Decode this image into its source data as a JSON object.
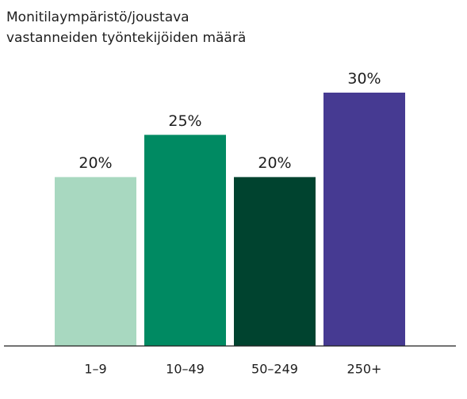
{
  "chart_data": {
    "type": "bar",
    "title": [
      "Monitilaympäristö/joustava",
      "vastanneiden työntekijöiden määrä"
    ],
    "categories": [
      "1–9",
      "10–49",
      "50–249",
      "250+"
    ],
    "values": [
      20,
      25,
      20,
      30
    ],
    "value_labels": [
      "20%",
      "25%",
      "20%",
      "30%"
    ],
    "colors": [
      "#a8d8c0",
      "#008a62",
      "#00432f",
      "#463a92"
    ],
    "ylim": [
      0,
      30
    ]
  }
}
